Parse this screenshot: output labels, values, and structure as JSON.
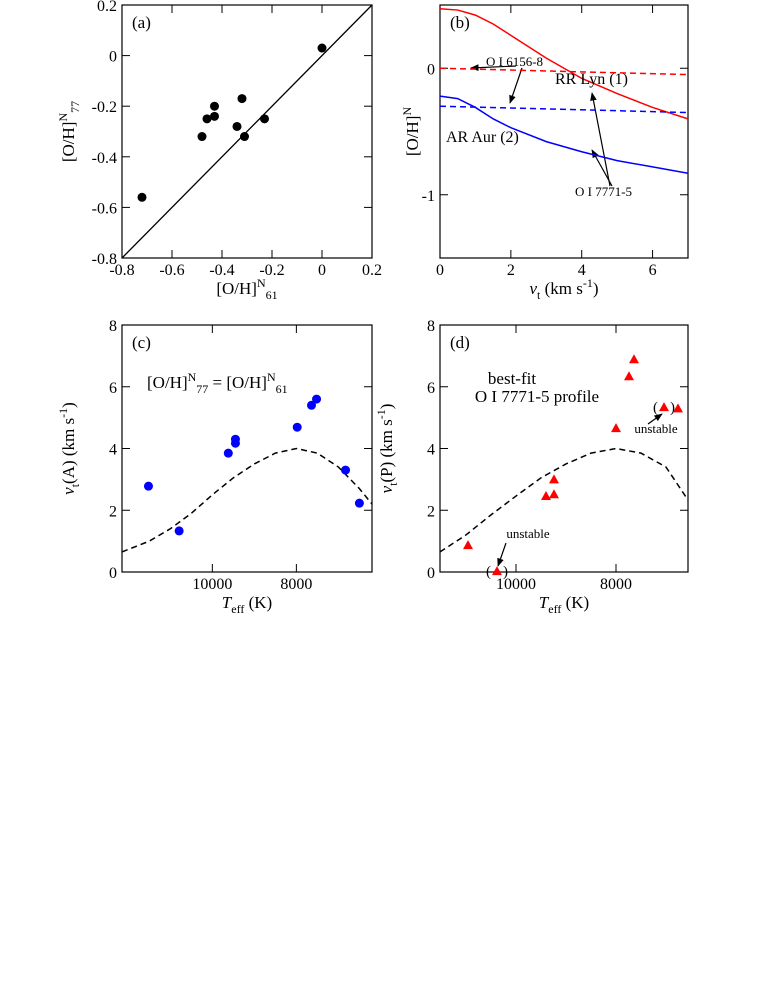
{
  "chart_data": [
    {
      "type": "scatter",
      "panel": "(a)",
      "xlabel": [
        {
          "t": "[O/H]"
        },
        {
          "t": "N",
          "s": "sup"
        },
        {
          "t": "61",
          "s": "sub"
        }
      ],
      "ylabel": [
        {
          "t": "[O/H]"
        },
        {
          "t": "N",
          "s": "sup"
        },
        {
          "t": "77",
          "s": "sub"
        }
      ],
      "xlim": [
        -0.8,
        0.2
      ],
      "ylim": [
        -0.8,
        0.2
      ],
      "xticks": [
        -0.8,
        -0.6,
        -0.4,
        -0.2,
        0,
        0.2
      ],
      "yticks": [
        -0.8,
        -0.6,
        -0.4,
        -0.2,
        0,
        0.2
      ],
      "identity_line": true,
      "series": [
        {
          "style": "circle",
          "color": "#000000",
          "x": [
            -0.72,
            -0.48,
            -0.46,
            -0.43,
            -0.43,
            -0.34,
            -0.32,
            -0.31,
            -0.23,
            0.0
          ],
          "values": [
            -0.56,
            -0.32,
            -0.25,
            -0.2,
            -0.24,
            -0.28,
            -0.17,
            -0.32,
            -0.25,
            0.03
          ]
        }
      ],
      "annotations": []
    },
    {
      "type": "line",
      "panel": "(b)",
      "xlabel": [
        {
          "t": "v",
          "s": "i"
        },
        {
          "t": "t",
          "s": "sub"
        },
        {
          "t": " (km s"
        },
        {
          "t": "-1",
          "s": "sup"
        },
        {
          "t": ")"
        }
      ],
      "ylabel": [
        {
          "t": "[O/H]"
        },
        {
          "t": "N",
          "s": "sup"
        }
      ],
      "xlim": [
        0,
        7
      ],
      "ylim": [
        -1.5,
        0.5
      ],
      "xticks": [
        0,
        2,
        4,
        6
      ],
      "yticks": [
        -1,
        0
      ],
      "series": [
        {
          "style": "solid-line",
          "color": "#ff0000",
          "x": [
            0,
            0.5,
            1,
            1.5,
            2,
            3,
            4,
            5,
            6,
            7
          ],
          "values": [
            0.47,
            0.46,
            0.42,
            0.35,
            0.26,
            0.08,
            -0.08,
            -0.2,
            -0.31,
            -0.4
          ]
        },
        {
          "style": "dashed-line",
          "color": "#ff0000",
          "x": [
            0,
            7
          ],
          "values": [
            0,
            -0.05
          ]
        },
        {
          "style": "solid-line",
          "color": "#0000ff",
          "x": [
            0,
            0.5,
            1,
            1.5,
            2,
            3,
            4,
            5,
            6,
            7
          ],
          "values": [
            -0.22,
            -0.24,
            -0.31,
            -0.4,
            -0.47,
            -0.58,
            -0.66,
            -0.73,
            -0.78,
            -0.83
          ]
        },
        {
          "style": "dashed-line",
          "color": "#0000ff",
          "x": [
            0,
            7
          ],
          "values": [
            -0.3,
            -0.35
          ]
        }
      ],
      "annotations": [
        {
          "parts": [
            {
              "t": "O I 6156-8"
            }
          ],
          "color": "#000000"
        },
        {
          "parts": [
            {
              "t": "RR Lyn (1)"
            }
          ],
          "color": "#ff0000"
        },
        {
          "parts": [
            {
              "t": "AR Aur (2)"
            }
          ],
          "color": "#0000ff"
        },
        {
          "parts": [
            {
              "t": "O I 7771-5"
            }
          ],
          "color": "#000000"
        }
      ]
    },
    {
      "type": "scatter",
      "panel": "(c)",
      "xlabel": [
        {
          "t": "T",
          "s": "i"
        },
        {
          "t": "eff",
          "s": "sub"
        },
        {
          "t": " (K)"
        }
      ],
      "ylabel": [
        {
          "t": "v",
          "s": "i"
        },
        {
          "t": "t",
          "s": "sub"
        },
        {
          "t": "(A) (km s"
        },
        {
          "t": "-1",
          "s": "sup"
        },
        {
          "t": ")"
        }
      ],
      "xlim": [
        12150,
        6200
      ],
      "ylim": [
        0,
        8
      ],
      "xticks": [
        10000,
        8000
      ],
      "yticks": [
        0,
        2,
        4,
        6,
        8
      ],
      "series": [
        {
          "style": "dashed-line",
          "color": "#000000",
          "x": [
            12150,
            11500,
            11000,
            10500,
            10000,
            9500,
            9000,
            8500,
            8000,
            7500,
            7000,
            6500,
            6200
          ],
          "values": [
            0.65,
            1.0,
            1.4,
            1.9,
            2.5,
            3.05,
            3.5,
            3.85,
            4.0,
            3.85,
            3.4,
            2.7,
            2.2
          ]
        },
        {
          "style": "circle",
          "color": "#0000ff",
          "x": [
            11520,
            10790,
            9620,
            9450,
            9450,
            7980,
            7640,
            7520,
            6830,
            6500
          ],
          "values": [
            2.78,
            1.33,
            3.85,
            4.17,
            4.3,
            4.69,
            5.4,
            5.6,
            3.3,
            2.23
          ]
        }
      ],
      "annotations": [
        {
          "parts": [
            {
              "t": "[O/H]"
            },
            {
              "t": "N",
              "s": "sup"
            },
            {
              "t": "77",
              "s": "sub"
            },
            {
              "t": " = [O/H]"
            },
            {
              "t": "N",
              "s": "sup"
            },
            {
              "t": "61",
              "s": "sub"
            }
          ],
          "color": "#000000"
        }
      ]
    },
    {
      "type": "scatter",
      "panel": "(d)",
      "xlabel": [
        {
          "t": "T",
          "s": "i"
        },
        {
          "t": "eff",
          "s": "sub"
        },
        {
          "t": " (K)"
        }
      ],
      "ylabel": [
        {
          "t": "v",
          "s": "i"
        },
        {
          "t": "t",
          "s": "sub"
        },
        {
          "t": "(P) (km s"
        },
        {
          "t": "-1",
          "s": "sup"
        },
        {
          "t": ")"
        }
      ],
      "xlim": [
        11520,
        6560
      ],
      "ylim": [
        0,
        8
      ],
      "xticks": [
        10000,
        8000
      ],
      "yticks": [
        0,
        2,
        4,
        6,
        8
      ],
      "series": [
        {
          "style": "dashed-line",
          "color": "#000000",
          "x": [
            11520,
            11000,
            10500,
            10000,
            9500,
            9000,
            8500,
            8000,
            7500,
            7000,
            6560
          ],
          "values": [
            0.65,
            1.2,
            1.85,
            2.46,
            3.05,
            3.5,
            3.85,
            4.0,
            3.85,
            3.4,
            2.33
          ]
        },
        {
          "style": "triangle",
          "color": "#ff0000",
          "x": [
            10960,
            10380,
            9400,
            9240,
            9240,
            8000,
            7740,
            7640,
            7040,
            6760
          ],
          "values": [
            0.87,
            0.03,
            2.46,
            2.52,
            3.0,
            4.66,
            6.34,
            6.89,
            5.34,
            5.3
          ],
          "bracketed": [
            1,
            8
          ],
          "bracket": [
            "(",
            ")"
          ]
        }
      ],
      "annotations": [
        {
          "parts": [
            {
              "t": "best-fit"
            }
          ],
          "color": "#000000"
        },
        {
          "parts": [
            {
              "t": "O I 7771-5 profile"
            }
          ],
          "color": "#000000"
        },
        {
          "parts": [
            {
              "t": "unstable"
            }
          ],
          "color": "#000000"
        },
        {
          "parts": [
            {
              "t": "unstable"
            }
          ],
          "color": "#000000"
        }
      ]
    }
  ]
}
